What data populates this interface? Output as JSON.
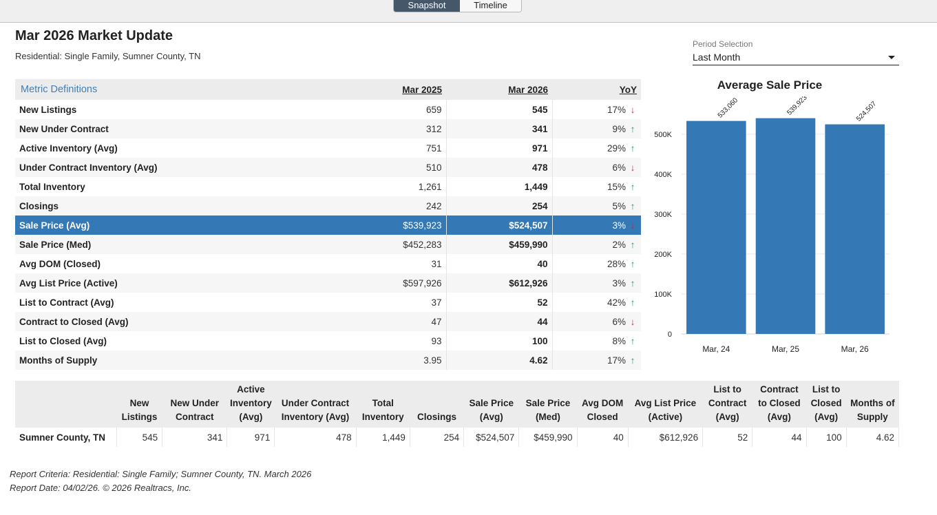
{
  "view_toggle": {
    "snapshot": "Snapshot",
    "timeline": "Timeline",
    "active": "Snapshot"
  },
  "header": {
    "title": "Mar 2026 Market Update",
    "subtitle": "Residential: Single Family, Sumner County, TN"
  },
  "period": {
    "label": "Period Selection",
    "value": "Last Month"
  },
  "metrics": {
    "definitions_link": "Metric Definitions",
    "col_prev": "Mar 2025",
    "col_curr": "Mar 2026",
    "col_yoy": "YoY",
    "highlight_color": "#3478b5",
    "up_color": "#1f9a63",
    "down_color": "#c0263a",
    "rows": [
      {
        "name": "New Listings",
        "prev": "659",
        "curr": "545",
        "yoy": "17%",
        "dir": "down"
      },
      {
        "name": "New Under Contract",
        "prev": "312",
        "curr": "341",
        "yoy": "9%",
        "dir": "up"
      },
      {
        "name": "Active Inventory (Avg)",
        "prev": "751",
        "curr": "971",
        "yoy": "29%",
        "dir": "up"
      },
      {
        "name": "Under Contract Inventory (Avg)",
        "prev": "510",
        "curr": "478",
        "yoy": "6%",
        "dir": "down"
      },
      {
        "name": "Total Inventory",
        "prev": "1,261",
        "curr": "1,449",
        "yoy": "15%",
        "dir": "up"
      },
      {
        "name": "Closings",
        "prev": "242",
        "curr": "254",
        "yoy": "5%",
        "dir": "up"
      },
      {
        "name": "Sale Price (Avg)",
        "prev": "$539,923",
        "curr": "$524,507",
        "yoy": "3%",
        "dir": "down",
        "selected": true
      },
      {
        "name": "Sale Price (Med)",
        "prev": "$452,283",
        "curr": "$459,990",
        "yoy": "2%",
        "dir": "up"
      },
      {
        "name": "Avg DOM (Closed)",
        "prev": "31",
        "curr": "40",
        "yoy": "28%",
        "dir": "up"
      },
      {
        "name": "Avg List Price (Active)",
        "prev": "$597,926",
        "curr": "$612,926",
        "yoy": "3%",
        "dir": "up"
      },
      {
        "name": "List to Contract (Avg)",
        "prev": "37",
        "curr": "52",
        "yoy": "42%",
        "dir": "up"
      },
      {
        "name": "Contract to Closed (Avg)",
        "prev": "47",
        "curr": "44",
        "yoy": "6%",
        "dir": "down"
      },
      {
        "name": "List to Closed (Avg)",
        "prev": "93",
        "curr": "100",
        "yoy": "8%",
        "dir": "up"
      },
      {
        "name": "Months of Supply",
        "prev": "3.95",
        "curr": "4.62",
        "yoy": "17%",
        "dir": "up"
      }
    ]
  },
  "chart_data": {
    "type": "bar",
    "title": "Average Sale Price",
    "categories": [
      "Mar, 24",
      "Mar, 25",
      "Mar, 26"
    ],
    "values": [
      533060,
      539923,
      524507
    ],
    "value_labels": [
      "533,060",
      "539,923",
      "524,507"
    ],
    "yticks": [
      0,
      100000,
      200000,
      300000,
      400000,
      500000
    ],
    "ytick_labels": [
      "0",
      "100K",
      "200K",
      "300K",
      "400K",
      "500K"
    ],
    "ylim": [
      0,
      560000
    ],
    "grid": true,
    "bar_color": "#3478b5"
  },
  "summary": {
    "headers": [
      "",
      "New Listings",
      "New Under Contract",
      "Active Inventory (Avg)",
      "Under Contract Inventory (Avg)",
      "Total Inventory",
      "Closings",
      "Sale Price (Avg)",
      "Sale Price (Med)",
      "Avg DOM Closed",
      "Avg List Price (Active)",
      "List to Contract (Avg)",
      "Contract to Closed (Avg)",
      "List to Closed (Avg)",
      "Months of Supply"
    ],
    "row": [
      "Sumner County, TN",
      "545",
      "341",
      "971",
      "478",
      "1,449",
      "254",
      "$524,507",
      "$459,990",
      "40",
      "$612,926",
      "52",
      "44",
      "100",
      "4.62"
    ]
  },
  "footer": {
    "criteria": "Report Criteria: Residential: Single Family; Sumner County, TN. March 2026",
    "date": "Report Date: 04/02/26. © 2026 Realtracs, Inc."
  }
}
